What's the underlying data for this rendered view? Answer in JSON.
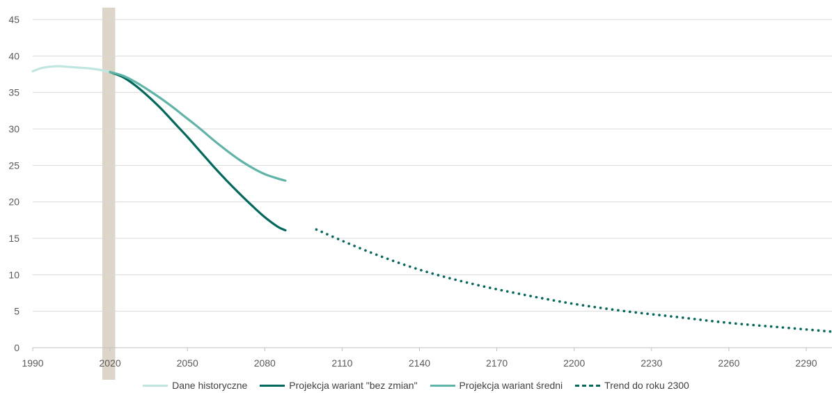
{
  "chart_data": {
    "type": "line",
    "xlim": [
      1990,
      2300
    ],
    "ylim": [
      0,
      45
    ],
    "x_ticks": [
      1990,
      2020,
      2050,
      2080,
      2110,
      2140,
      2170,
      2200,
      2230,
      2260,
      2290
    ],
    "y_ticks": [
      0,
      5,
      10,
      15,
      20,
      25,
      30,
      35,
      40,
      45
    ],
    "grid": "horizontal",
    "legend_position": "bottom",
    "highlight_band": {
      "x_start": 2017,
      "x_end": 2022,
      "color": "#ddd5c8"
    },
    "series": [
      {
        "name": "Dane historyczne",
        "color": "#bfe6e0",
        "style": "solid",
        "points": [
          [
            1990,
            37.9
          ],
          [
            1993,
            38.3
          ],
          [
            1996,
            38.5
          ],
          [
            2000,
            38.6
          ],
          [
            2004,
            38.5
          ],
          [
            2008,
            38.4
          ],
          [
            2012,
            38.3
          ],
          [
            2016,
            38.1
          ],
          [
            2020,
            37.8
          ]
        ]
      },
      {
        "name": "Projekcja wariant \"bez zmian\"",
        "color": "#00695c",
        "style": "solid",
        "points": [
          [
            2020,
            37.8
          ],
          [
            2025,
            37.1
          ],
          [
            2030,
            35.9
          ],
          [
            2035,
            34.4
          ],
          [
            2040,
            32.7
          ],
          [
            2045,
            30.8
          ],
          [
            2050,
            28.9
          ],
          [
            2055,
            26.9
          ],
          [
            2060,
            24.9
          ],
          [
            2065,
            23.0
          ],
          [
            2070,
            21.2
          ],
          [
            2075,
            19.5
          ],
          [
            2080,
            17.9
          ],
          [
            2085,
            16.6
          ],
          [
            2088,
            16.1
          ]
        ]
      },
      {
        "name": "Projekcja wariant średni",
        "color": "#5fb4a8",
        "style": "solid",
        "points": [
          [
            2020,
            37.8
          ],
          [
            2025,
            37.3
          ],
          [
            2030,
            36.4
          ],
          [
            2035,
            35.3
          ],
          [
            2040,
            34.1
          ],
          [
            2045,
            32.8
          ],
          [
            2050,
            31.4
          ],
          [
            2055,
            30.0
          ],
          [
            2060,
            28.5
          ],
          [
            2065,
            27.1
          ],
          [
            2070,
            25.8
          ],
          [
            2075,
            24.7
          ],
          [
            2080,
            23.8
          ],
          [
            2085,
            23.2
          ],
          [
            2088,
            22.9
          ]
        ]
      },
      {
        "name": "Trend do roku 2300",
        "color": "#00695c",
        "style": "dotted",
        "points": [
          [
            2100,
            16.2
          ],
          [
            2120,
            13.2
          ],
          [
            2140,
            10.7
          ],
          [
            2160,
            8.8
          ],
          [
            2180,
            7.3
          ],
          [
            2200,
            6.0
          ],
          [
            2220,
            5.0
          ],
          [
            2240,
            4.2
          ],
          [
            2260,
            3.4
          ],
          [
            2280,
            2.8
          ],
          [
            2300,
            2.2
          ]
        ]
      }
    ]
  }
}
